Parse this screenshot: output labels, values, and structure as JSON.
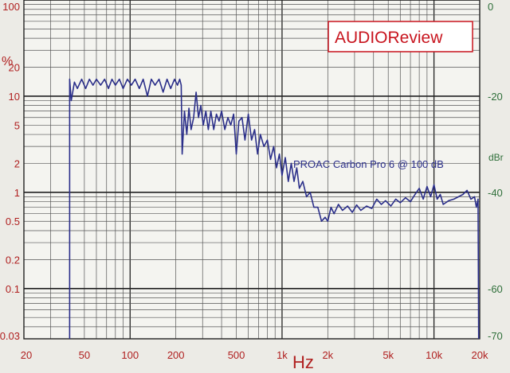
{
  "chart_data": {
    "type": "line",
    "title": "",
    "brand": "AUDIOReview",
    "annotation": "PROAC Carbon Pro 6 @ 100 dB",
    "xlabel": "Hz",
    "ylabel_left": "%",
    "ylabel_right": "dBr",
    "x_scale": "log",
    "y_scale": "log",
    "xlim": [
      20,
      20000
    ],
    "ylim_left": [
      0.03,
      100
    ],
    "ylim_right": [
      -70,
      0
    ],
    "x_ticks": [
      {
        "v": 20,
        "label": "20"
      },
      {
        "v": 50,
        "label": "50"
      },
      {
        "v": 100,
        "label": "100"
      },
      {
        "v": 200,
        "label": "200"
      },
      {
        "v": 500,
        "label": "500"
      },
      {
        "v": 1000,
        "label": "1k"
      },
      {
        "v": 2000,
        "label": "2k"
      },
      {
        "v": 5000,
        "label": "5k"
      },
      {
        "v": 10000,
        "label": "10k"
      },
      {
        "v": 20000,
        "label": "20k"
      }
    ],
    "y_ticks_left": [
      {
        "v": 100,
        "label": "100"
      },
      {
        "v": 20,
        "label": "20"
      },
      {
        "v": 10,
        "label": "10"
      },
      {
        "v": 5,
        "label": "5"
      },
      {
        "v": 2,
        "label": "2"
      },
      {
        "v": 1,
        "label": "1"
      },
      {
        "v": 0.5,
        "label": "0.5"
      },
      {
        "v": 0.2,
        "label": "0.2"
      },
      {
        "v": 0.1,
        "label": "0.1"
      },
      {
        "v": 0.03,
        "label": "0.03"
      }
    ],
    "y_ticks_right": [
      {
        "v": 0,
        "label": "0"
      },
      {
        "v": -20,
        "label": "-20"
      },
      {
        "v": -40,
        "label": "-40"
      },
      {
        "v": -60,
        "label": "-60"
      },
      {
        "v": -70,
        "label": "-70"
      }
    ],
    "grid": true,
    "series": [
      {
        "name": "",
        "color": "#2b2f8a",
        "points": [
          [
            40,
            0.03
          ],
          [
            40,
            15
          ],
          [
            41,
            9
          ],
          [
            43,
            14
          ],
          [
            45,
            12
          ],
          [
            48,
            15
          ],
          [
            51,
            12
          ],
          [
            54,
            15
          ],
          [
            57,
            13
          ],
          [
            60,
            15
          ],
          [
            64,
            13
          ],
          [
            68,
            15
          ],
          [
            72,
            12
          ],
          [
            76,
            15
          ],
          [
            80,
            13
          ],
          [
            85,
            15
          ],
          [
            90,
            12
          ],
          [
            96,
            15
          ],
          [
            102,
            13
          ],
          [
            108,
            15
          ],
          [
            115,
            12
          ],
          [
            122,
            15
          ],
          [
            130,
            10
          ],
          [
            138,
            15
          ],
          [
            146,
            13
          ],
          [
            155,
            15
          ],
          [
            165,
            11
          ],
          [
            175,
            15
          ],
          [
            185,
            12
          ],
          [
            196,
            15
          ],
          [
            205,
            13
          ],
          [
            212,
            15
          ],
          [
            217,
            13
          ],
          [
            220,
            2.5
          ],
          [
            228,
            7
          ],
          [
            236,
            4
          ],
          [
            244,
            7.5
          ],
          [
            252,
            4.5
          ],
          [
            262,
            6
          ],
          [
            272,
            11
          ],
          [
            282,
            6
          ],
          [
            292,
            8
          ],
          [
            303,
            5
          ],
          [
            315,
            7
          ],
          [
            327,
            4.5
          ],
          [
            340,
            7
          ],
          [
            355,
            4.5
          ],
          [
            370,
            6.5
          ],
          [
            385,
            5.5
          ],
          [
            400,
            7
          ],
          [
            420,
            4.5
          ],
          [
            440,
            6
          ],
          [
            460,
            5
          ],
          [
            480,
            6.5
          ],
          [
            500,
            2.5
          ],
          [
            520,
            5.5
          ],
          [
            545,
            6
          ],
          [
            570,
            3.5
          ],
          [
            600,
            6.5
          ],
          [
            630,
            3.5
          ],
          [
            660,
            4.5
          ],
          [
            690,
            2.5
          ],
          [
            720,
            4
          ],
          [
            760,
            3
          ],
          [
            800,
            3.5
          ],
          [
            840,
            2.2
          ],
          [
            880,
            3
          ],
          [
            920,
            1.8
          ],
          [
            960,
            2.5
          ],
          [
            1000,
            1.5
          ],
          [
            1050,
            2.3
          ],
          [
            1100,
            1.3
          ],
          [
            1150,
            2
          ],
          [
            1200,
            1.3
          ],
          [
            1250,
            1.8
          ],
          [
            1300,
            1.1
          ],
          [
            1370,
            1.3
          ],
          [
            1450,
            0.9
          ],
          [
            1530,
            1
          ],
          [
            1620,
            0.7
          ],
          [
            1720,
            0.7
          ],
          [
            1820,
            0.5
          ],
          [
            1920,
            0.55
          ],
          [
            2000,
            0.5
          ],
          [
            2100,
            0.7
          ],
          [
            2200,
            0.6
          ],
          [
            2350,
            0.75
          ],
          [
            2500,
            0.65
          ],
          [
            2700,
            0.72
          ],
          [
            2900,
            0.62
          ],
          [
            3100,
            0.74
          ],
          [
            3300,
            0.65
          ],
          [
            3600,
            0.72
          ],
          [
            3900,
            0.68
          ],
          [
            4200,
            0.85
          ],
          [
            4500,
            0.75
          ],
          [
            4800,
            0.82
          ],
          [
            5200,
            0.72
          ],
          [
            5600,
            0.85
          ],
          [
            6000,
            0.78
          ],
          [
            6500,
            0.88
          ],
          [
            7000,
            0.8
          ],
          [
            7500,
            0.95
          ],
          [
            8000,
            1.1
          ],
          [
            8500,
            0.85
          ],
          [
            9000,
            1.15
          ],
          [
            9500,
            0.9
          ],
          [
            10000,
            1.2
          ],
          [
            10500,
            0.85
          ],
          [
            11000,
            0.95
          ],
          [
            11500,
            0.75
          ],
          [
            12500,
            0.82
          ],
          [
            13500,
            0.85
          ],
          [
            14500,
            0.9
          ],
          [
            15500,
            0.95
          ],
          [
            16500,
            1.05
          ],
          [
            17500,
            0.85
          ],
          [
            18500,
            0.9
          ],
          [
            19000,
            0.7
          ],
          [
            19500,
            0.85
          ],
          [
            19700,
            0.03
          ]
        ]
      }
    ]
  }
}
